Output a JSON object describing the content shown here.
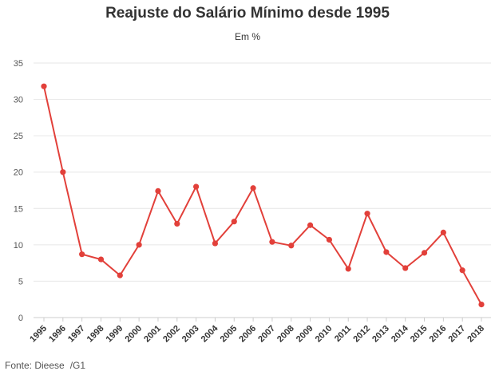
{
  "title": "Reajuste do Salário Mínimo desde 1995",
  "subtitle": "Em %",
  "source": {
    "label": "Fonte: Dieese",
    "outlet": "/G1"
  },
  "colors": {
    "series": "#e2403a",
    "grid": "#e6e6e6",
    "axis": "#cccccc"
  },
  "chart_data": {
    "type": "line",
    "title": "Reajuste do Salário Mínimo desde 1995",
    "subtitle": "Em %",
    "xlabel": "",
    "ylabel": "",
    "categories": [
      "1995",
      "1996",
      "1997",
      "1998",
      "1999",
      "2000",
      "2001",
      "2002",
      "2003",
      "2004",
      "2005",
      "2006",
      "2007",
      "2008",
      "2009",
      "2010",
      "2011",
      "2012",
      "2013",
      "2014",
      "2015",
      "2016",
      "2017",
      "2018"
    ],
    "series": [
      {
        "values": [
          31.8,
          20.0,
          8.7,
          8.0,
          5.8,
          10.0,
          17.4,
          12.9,
          18.0,
          10.2,
          13.2,
          17.8,
          10.4,
          9.9,
          12.7,
          10.7,
          6.7,
          14.3,
          9.0,
          6.8,
          8.9,
          11.7,
          6.5,
          1.8
        ]
      }
    ],
    "ylim": [
      0,
      35
    ],
    "yticks": [
      0,
      5,
      10,
      15,
      20,
      25,
      30,
      35
    ],
    "grid": true,
    "legend": "none"
  }
}
